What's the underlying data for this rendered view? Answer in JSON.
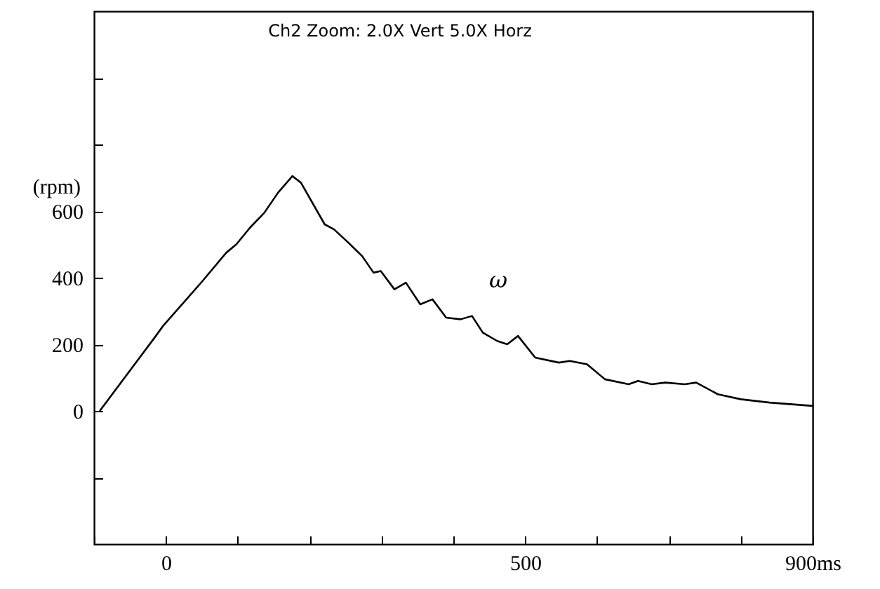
{
  "chart_data": {
    "type": "line",
    "title": "Ch2 Zoom:    2.0X Vert    5.0X Horz",
    "ylabel": "(rpm)",
    "annotations": [
      "ω"
    ],
    "xlim": [
      -100,
      900
    ],
    "ylim": [
      -400,
      1200
    ],
    "xticks": [
      {
        "value": -100,
        "label": null
      },
      0,
      {
        "value": 100,
        "label": null
      },
      {
        "value": 200,
        "label": null
      },
      {
        "value": 300,
        "label": null
      },
      {
        "value": 400,
        "label": null
      },
      500,
      {
        "value": 600,
        "label": null
      },
      {
        "value": 700,
        "label": null
      },
      {
        "value": 800,
        "label": null
      },
      {
        "value": 900,
        "label": "900ms"
      }
    ],
    "yticks": [
      {
        "value": -200,
        "label": null
      },
      0,
      200,
      400,
      600,
      {
        "value": 800,
        "label": null
      },
      {
        "value": 1000,
        "label": null
      }
    ],
    "grid": false,
    "marker": "none",
    "line_style": "solid",
    "series": [
      {
        "color": "#000000",
        "x": [
          -92,
          -14,
          -4,
          51,
          84,
          98,
          117,
          137,
          156,
          176,
          188,
          221,
          234,
          254,
          273,
          289,
          299,
          318,
          334,
          354,
          371,
          390,
          410,
          426,
          441,
          461,
          475,
          490,
          514,
          547,
          562,
          586,
          611,
          644,
          657,
          676,
          695,
          722,
          738,
          768,
          800,
          840,
          900
        ],
        "values": [
          0,
          225,
          255,
          390,
          475,
          500,
          550,
          595,
          655,
          705,
          685,
          560,
          545,
          505,
          465,
          415,
          420,
          365,
          385,
          320,
          335,
          280,
          275,
          285,
          235,
          210,
          200,
          225,
          160,
          145,
          150,
          140,
          95,
          80,
          90,
          80,
          85,
          80,
          85,
          50,
          35,
          25,
          15
        ]
      }
    ]
  }
}
